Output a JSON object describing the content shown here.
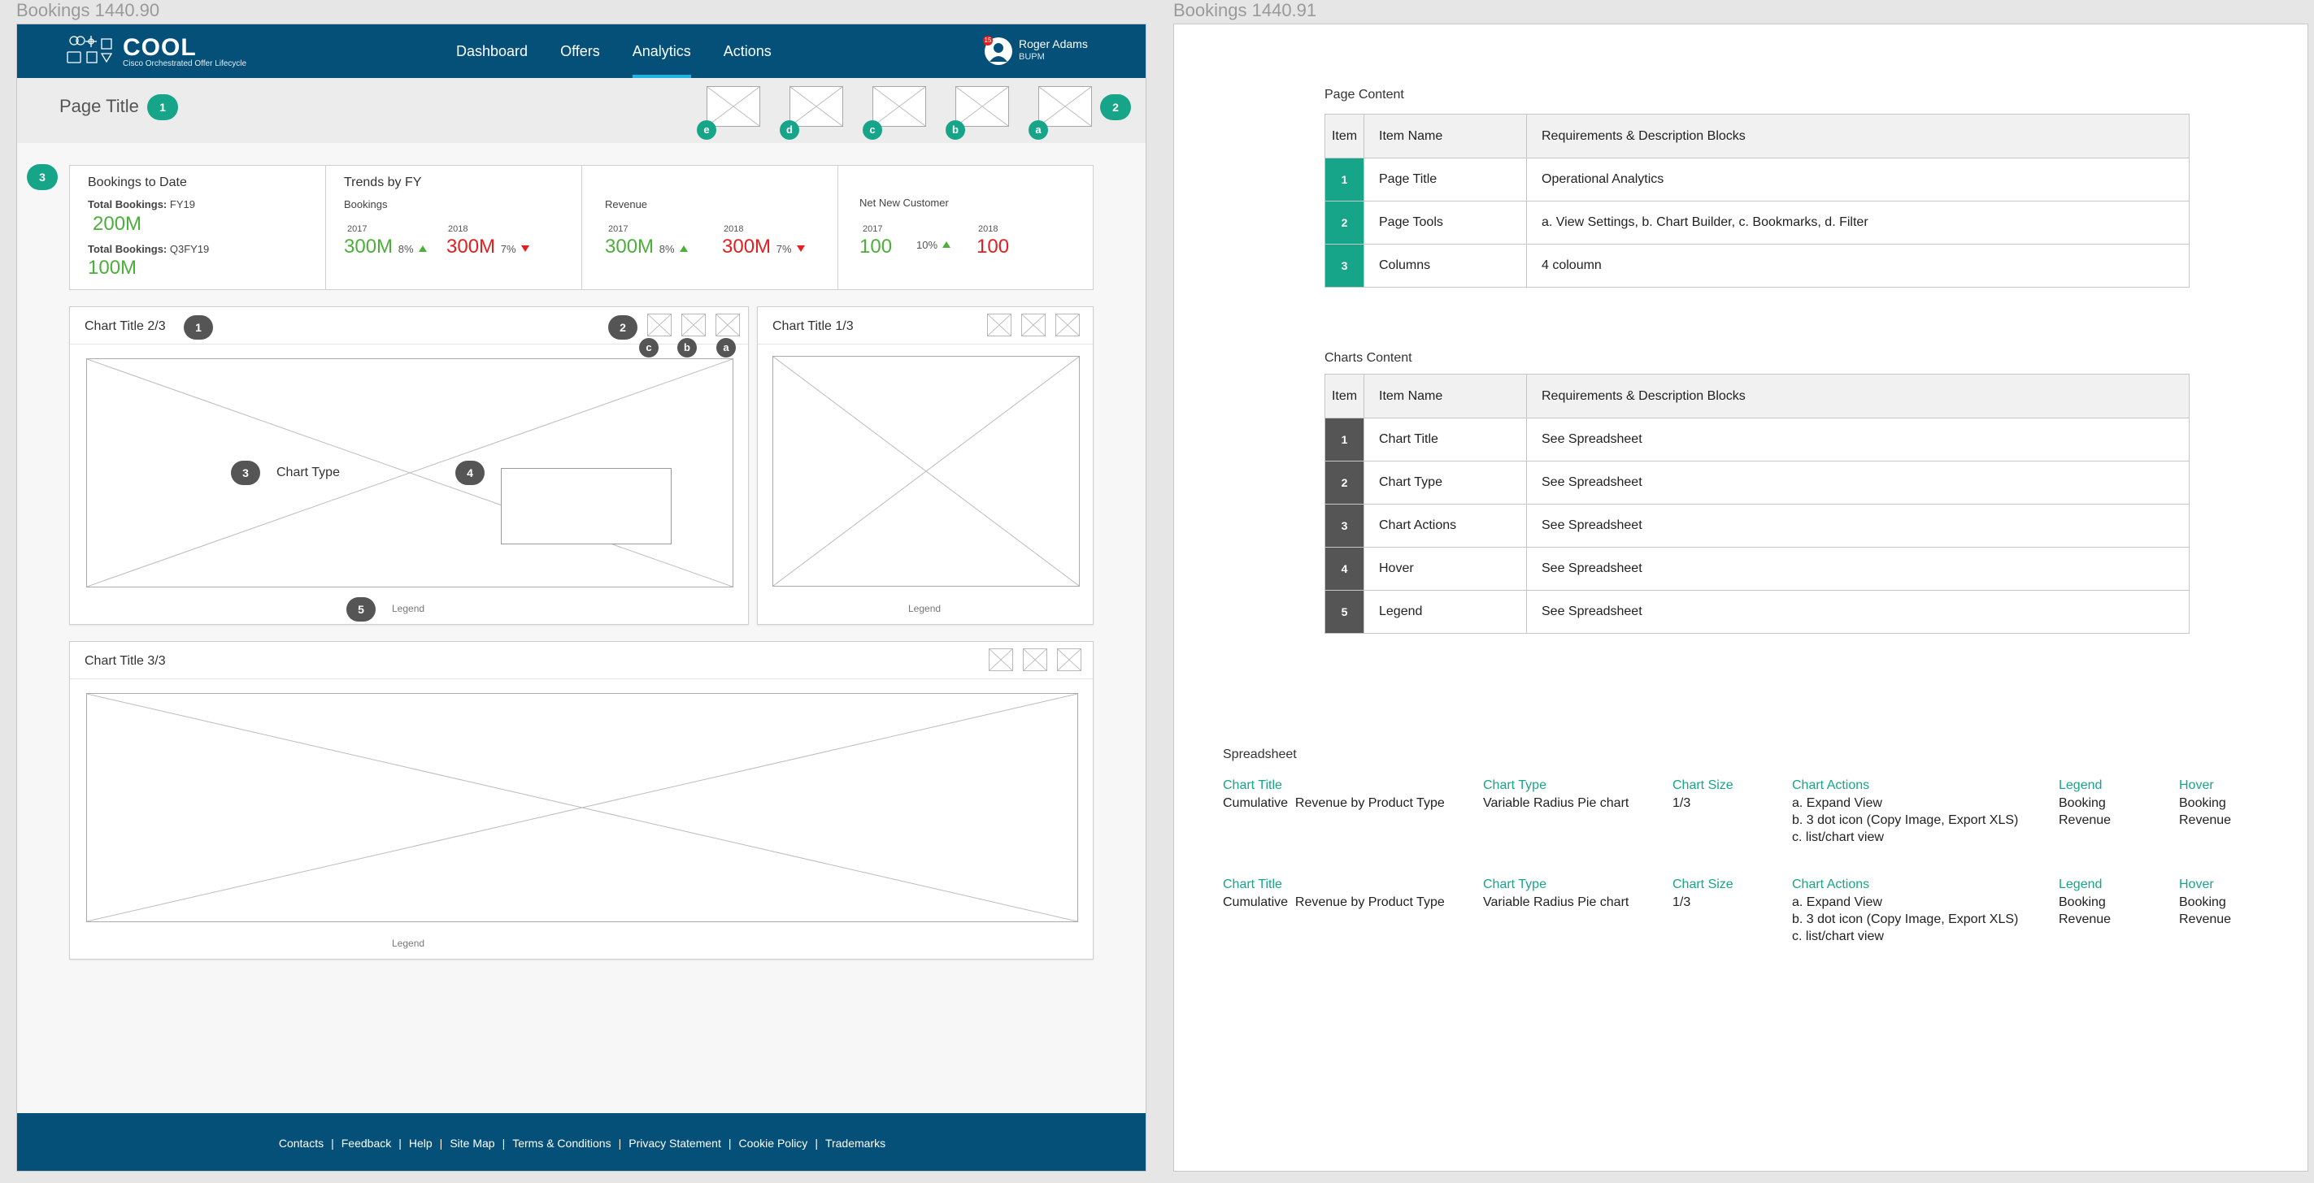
{
  "artboards": {
    "left_label": "Bookings 1440.90",
    "right_label": "Bookings 1440.91"
  },
  "header": {
    "logo_text": "COOL",
    "logo_subtitle": "Cisco Orchestrated Offer Lifecycle",
    "nav": [
      "Dashboard",
      "Offers",
      "Analytics",
      "Actions"
    ],
    "active_nav": "Analytics",
    "user_name": "Roger Adams",
    "user_role": "BUPM",
    "notification_count": "15"
  },
  "page": {
    "title": "Page Title",
    "tools": [
      "e",
      "d",
      "c",
      "b",
      "a"
    ]
  },
  "callouts": {
    "page_title": "1",
    "page_tools": "2",
    "columns": "3",
    "chart_title": "1",
    "chart_actions": "2",
    "chart_type": "3",
    "hover": "4",
    "legend": "5",
    "action_letters": [
      "c",
      "b",
      "a"
    ]
  },
  "kpis": {
    "bookings_to_date": {
      "title": "Bookings to Date",
      "label1": "Total Bookings:",
      "period1": " FY19",
      "value1": "200M",
      "label2": "Total Bookings:",
      "period2": " Q3FY19",
      "value2": "100M"
    },
    "trends": {
      "title": "Trends by FY",
      "subtitle": "Bookings",
      "year_a": "2017",
      "value_a": "300M",
      "pct_a": "8%",
      "year_b": "2018",
      "value_b": "300M",
      "pct_b": "7%"
    },
    "revenue": {
      "title": "Revenue",
      "year_a": "2017",
      "value_a": "300M",
      "pct_a": "8%",
      "year_b": "2018",
      "value_b": "300M",
      "pct_b": "7%"
    },
    "net_new": {
      "title": "Net New Customer",
      "year_a": "2017",
      "value_a": "100",
      "pct_a": "10%",
      "year_b": "2018",
      "value_b": "100"
    }
  },
  "charts": {
    "chart1": {
      "title": "Chart Title 2/3",
      "type_label": "Chart Type",
      "legend": "Legend"
    },
    "chart2": {
      "title": "Chart Title 1/3",
      "legend": "Legend"
    },
    "chart3": {
      "title": "Chart Title 3/3",
      "legend": "Legend"
    }
  },
  "footer": {
    "links": [
      "Contacts",
      "Feedback",
      "Help",
      "Site Map",
      "Terms & Conditions",
      "Privacy Statement",
      "Cookie Policy",
      "Trademarks"
    ]
  },
  "page_content": {
    "label": "Page Content",
    "headers": [
      "Item",
      "Item Name",
      "Requirements & Description Blocks"
    ],
    "rows": [
      {
        "item": "1",
        "name": "Page Title",
        "desc": "Operational Analytics"
      },
      {
        "item": "2",
        "name": "Page Tools",
        "desc": "a. View Settings, b. Chart Builder, c. Bookmarks, d. Filter"
      },
      {
        "item": "3",
        "name": "Columns",
        "desc": "4 coloumn"
      }
    ]
  },
  "charts_content": {
    "label": "Charts Content",
    "headers": [
      "Item",
      "Item Name",
      "Requirements & Description Blocks"
    ],
    "rows": [
      {
        "item": "1",
        "name": "Chart Title",
        "desc": "See Spreadsheet"
      },
      {
        "item": "2",
        "name": "Chart Type",
        "desc": "See Spreadsheet"
      },
      {
        "item": "3",
        "name": "Chart Actions",
        "desc": "See Spreadsheet"
      },
      {
        "item": "4",
        "name": "Hover",
        "desc": "See Spreadsheet"
      },
      {
        "item": "5",
        "name": "Legend",
        "desc": "See Spreadsheet"
      }
    ]
  },
  "spreadsheet": {
    "label": "Spreadsheet",
    "headers": [
      "Chart Title",
      "Chart Type",
      "Chart Size",
      "Chart Actions",
      "Legend",
      "Hover"
    ],
    "rows": [
      {
        "title": "Cumulative  Revenue by Product Type",
        "type": "Variable Radius Pie chart",
        "size": "1/3",
        "actions": [
          "a. Expand View",
          "b. 3 dot icon (Copy Image, Export XLS)",
          "c. list/chart view"
        ],
        "legend": [
          "Booking",
          "Revenue"
        ],
        "hover": [
          "Booking",
          "Revenue"
        ]
      },
      {
        "title": "Cumulative  Revenue by Product Type",
        "type": "Variable Radius Pie chart",
        "size": "1/3",
        "actions": [
          "a. Expand View",
          "b. 3 dot icon (Copy Image, Export XLS)",
          "c. list/chart view"
        ],
        "legend": [
          "Booking",
          "Revenue"
        ],
        "hover": [
          "Booking",
          "Revenue"
        ]
      }
    ]
  },
  "colors": {
    "header_bg": "#045079",
    "callout_teal": "#17a589",
    "callout_dark": "#555555",
    "positive": "#4caf3a",
    "negative": "#e32020"
  }
}
